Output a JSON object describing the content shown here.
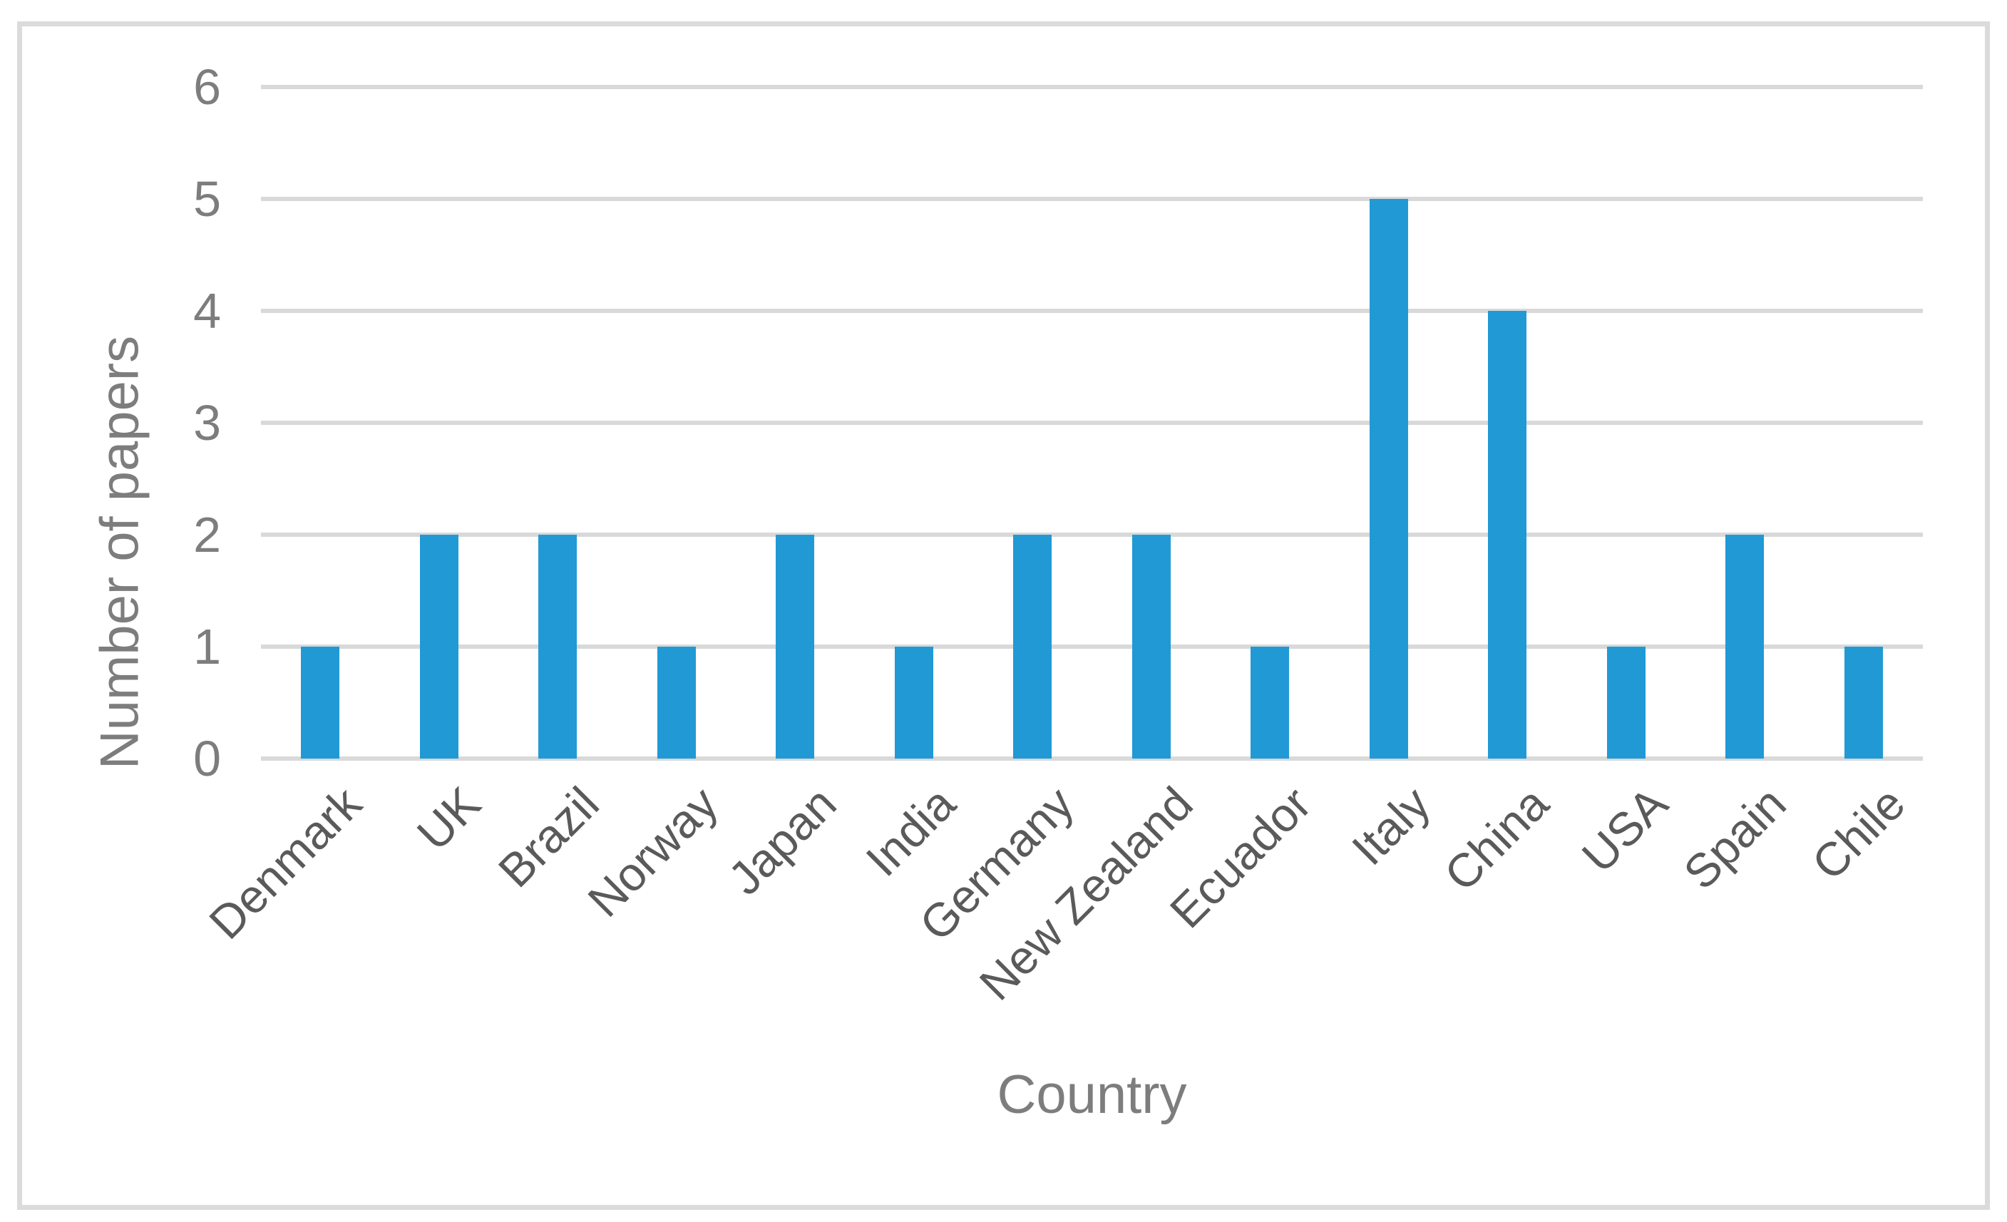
{
  "chart_data": {
    "type": "bar",
    "title": "",
    "categories": [
      "Denmark",
      "UK",
      "Brazil",
      "Norway",
      "Japan",
      "India",
      "Germany",
      "New Zealand",
      "Ecuador",
      "Italy",
      "China",
      "USA",
      "Spain",
      "Chile"
    ],
    "values": [
      1,
      2,
      2,
      1,
      2,
      1,
      2,
      2,
      1,
      5,
      4,
      1,
      2,
      1
    ],
    "xlabel": "Country",
    "ylabel": "Number of papers",
    "yticks": [
      0,
      1,
      2,
      3,
      4,
      5,
      6
    ],
    "ylim": [
      0,
      6
    ],
    "grid": true,
    "legend_position": "none",
    "colors": {
      "bar": "#2199D5",
      "gridline": "#D9D9D9",
      "figure_border": "#DBDBDB",
      "y_tick_text": "#7D7D7D",
      "axis_title_text": "#7D7D7D",
      "category_text": "#5A5A5A",
      "background": "#FFFFFF"
    }
  }
}
